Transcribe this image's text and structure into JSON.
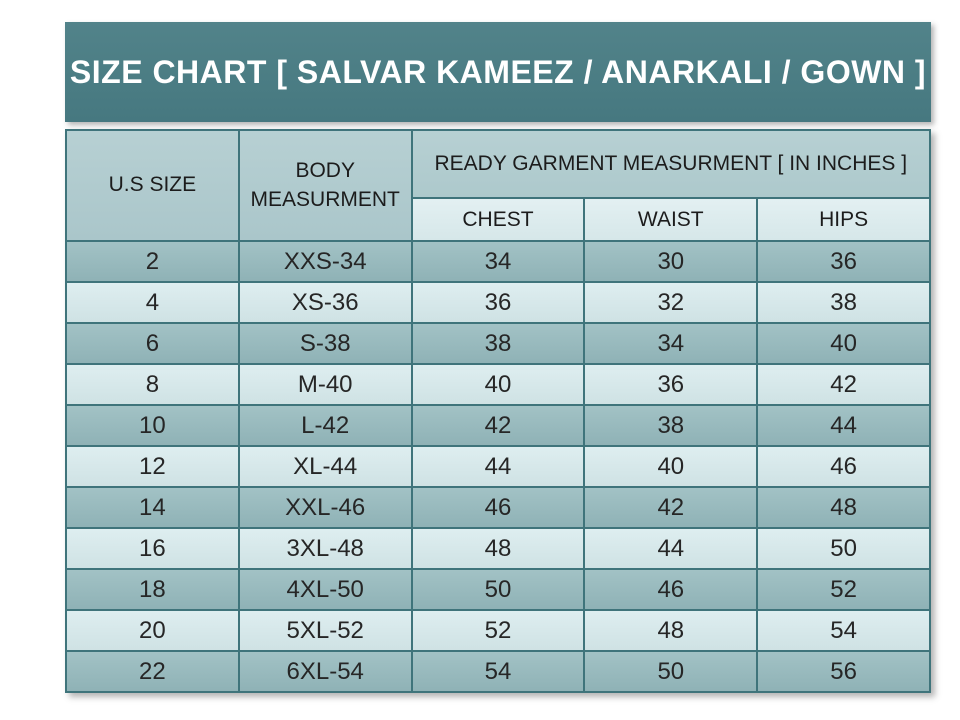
{
  "title": "SIZE CHART [ SALVAR KAMEEZ / ANARKALI / GOWN ]",
  "colors": {
    "title_band": "#4b7d84",
    "header_cell": "#b0cbce",
    "subheader_cell": "#dcebed",
    "row_dark": "#96b9bd",
    "row_light": "#d6e8ea",
    "border": "#3f747b",
    "title_text": "#ffffff",
    "cell_text": "#262626",
    "page_background": "#ffffff"
  },
  "chart_data": {
    "type": "table",
    "title": "SIZE CHART [ SALVAR KAMEEZ / ANARKALI / GOWN ]",
    "column_groups": {
      "us_size": "U.S SIZE",
      "body_measurement": "BODY MEASURMENT",
      "ready_garment": "READY GARMENT MEASURMENT [ IN INCHES ]"
    },
    "sub_columns": [
      "CHEST",
      "WAIST",
      "HIPS"
    ],
    "rows": [
      [
        "2",
        "XXS-34",
        "34",
        "30",
        "36"
      ],
      [
        "4",
        "XS-36",
        "36",
        "32",
        "38"
      ],
      [
        "6",
        "S-38",
        "38",
        "34",
        "40"
      ],
      [
        "8",
        "M-40",
        "40",
        "36",
        "42"
      ],
      [
        "10",
        "L-42",
        "42",
        "38",
        "44"
      ],
      [
        "12",
        "XL-44",
        "44",
        "40",
        "46"
      ],
      [
        "14",
        "XXL-46",
        "46",
        "42",
        "48"
      ],
      [
        "16",
        "3XL-48",
        "48",
        "44",
        "50"
      ],
      [
        "18",
        "4XL-50",
        "50",
        "46",
        "52"
      ],
      [
        "20",
        "5XL-52",
        "52",
        "48",
        "54"
      ],
      [
        "22",
        "6XL-54",
        "54",
        "50",
        "56"
      ]
    ]
  }
}
